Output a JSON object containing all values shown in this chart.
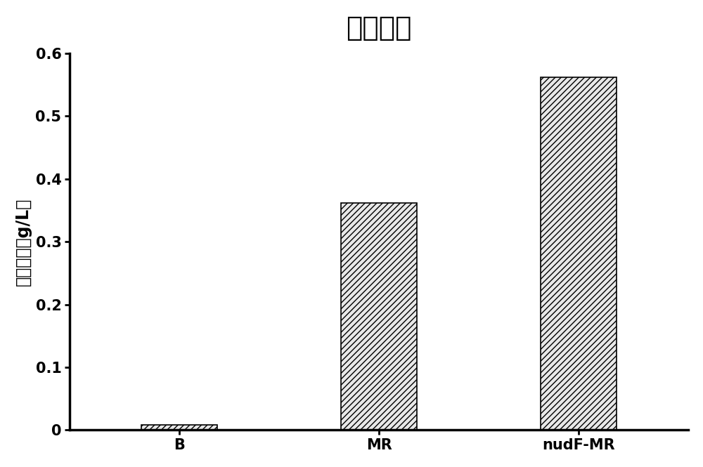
{
  "title": "甲醇消耗",
  "categories": [
    "B",
    "MR",
    "nudF-MR"
  ],
  "values": [
    0.008,
    0.362,
    0.562
  ],
  "ylabel": "甲醇消耗（g/L）",
  "ylim": [
    0,
    0.6
  ],
  "yticks": [
    0,
    0.1,
    0.2,
    0.3,
    0.4,
    0.5,
    0.6
  ],
  "bar_color": "#e8e8e8",
  "hatch_pattern": "////",
  "title_fontsize": 28,
  "axis_label_fontsize": 17,
  "tick_fontsize": 15,
  "background_color": "#ffffff",
  "bar_width": 0.38,
  "bar_edge_color": "#000000",
  "spine_linewidth": 2.5
}
